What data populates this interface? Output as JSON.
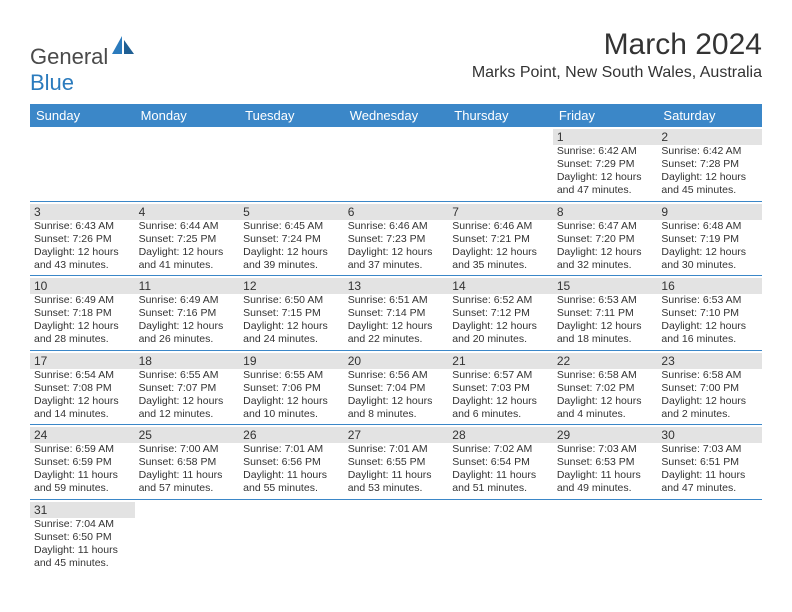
{
  "brand": {
    "part1": "General",
    "part2": "Blue"
  },
  "title": "March 2024",
  "location": "Marks Point, New South Wales, Australia",
  "colors": {
    "header_bg": "#3b87c8",
    "header_text": "#ffffff",
    "daynum_bg": "#e3e3e3",
    "rule": "#3b87c8",
    "text": "#333333",
    "logo_blue": "#2b7bbd"
  },
  "dayNames": [
    "Sunday",
    "Monday",
    "Tuesday",
    "Wednesday",
    "Thursday",
    "Friday",
    "Saturday"
  ],
  "weeks": [
    [
      null,
      null,
      null,
      null,
      null,
      {
        "n": "1",
        "sr": "6:42 AM",
        "ss": "7:29 PM",
        "dl": "12 hours and 47 minutes."
      },
      {
        "n": "2",
        "sr": "6:42 AM",
        "ss": "7:28 PM",
        "dl": "12 hours and 45 minutes."
      }
    ],
    [
      {
        "n": "3",
        "sr": "6:43 AM",
        "ss": "7:26 PM",
        "dl": "12 hours and 43 minutes."
      },
      {
        "n": "4",
        "sr": "6:44 AM",
        "ss": "7:25 PM",
        "dl": "12 hours and 41 minutes."
      },
      {
        "n": "5",
        "sr": "6:45 AM",
        "ss": "7:24 PM",
        "dl": "12 hours and 39 minutes."
      },
      {
        "n": "6",
        "sr": "6:46 AM",
        "ss": "7:23 PM",
        "dl": "12 hours and 37 minutes."
      },
      {
        "n": "7",
        "sr": "6:46 AM",
        "ss": "7:21 PM",
        "dl": "12 hours and 35 minutes."
      },
      {
        "n": "8",
        "sr": "6:47 AM",
        "ss": "7:20 PM",
        "dl": "12 hours and 32 minutes."
      },
      {
        "n": "9",
        "sr": "6:48 AM",
        "ss": "7:19 PM",
        "dl": "12 hours and 30 minutes."
      }
    ],
    [
      {
        "n": "10",
        "sr": "6:49 AM",
        "ss": "7:18 PM",
        "dl": "12 hours and 28 minutes."
      },
      {
        "n": "11",
        "sr": "6:49 AM",
        "ss": "7:16 PM",
        "dl": "12 hours and 26 minutes."
      },
      {
        "n": "12",
        "sr": "6:50 AM",
        "ss": "7:15 PM",
        "dl": "12 hours and 24 minutes."
      },
      {
        "n": "13",
        "sr": "6:51 AM",
        "ss": "7:14 PM",
        "dl": "12 hours and 22 minutes."
      },
      {
        "n": "14",
        "sr": "6:52 AM",
        "ss": "7:12 PM",
        "dl": "12 hours and 20 minutes."
      },
      {
        "n": "15",
        "sr": "6:53 AM",
        "ss": "7:11 PM",
        "dl": "12 hours and 18 minutes."
      },
      {
        "n": "16",
        "sr": "6:53 AM",
        "ss": "7:10 PM",
        "dl": "12 hours and 16 minutes."
      }
    ],
    [
      {
        "n": "17",
        "sr": "6:54 AM",
        "ss": "7:08 PM",
        "dl": "12 hours and 14 minutes."
      },
      {
        "n": "18",
        "sr": "6:55 AM",
        "ss": "7:07 PM",
        "dl": "12 hours and 12 minutes."
      },
      {
        "n": "19",
        "sr": "6:55 AM",
        "ss": "7:06 PM",
        "dl": "12 hours and 10 minutes."
      },
      {
        "n": "20",
        "sr": "6:56 AM",
        "ss": "7:04 PM",
        "dl": "12 hours and 8 minutes."
      },
      {
        "n": "21",
        "sr": "6:57 AM",
        "ss": "7:03 PM",
        "dl": "12 hours and 6 minutes."
      },
      {
        "n": "22",
        "sr": "6:58 AM",
        "ss": "7:02 PM",
        "dl": "12 hours and 4 minutes."
      },
      {
        "n": "23",
        "sr": "6:58 AM",
        "ss": "7:00 PM",
        "dl": "12 hours and 2 minutes."
      }
    ],
    [
      {
        "n": "24",
        "sr": "6:59 AM",
        "ss": "6:59 PM",
        "dl": "11 hours and 59 minutes."
      },
      {
        "n": "25",
        "sr": "7:00 AM",
        "ss": "6:58 PM",
        "dl": "11 hours and 57 minutes."
      },
      {
        "n": "26",
        "sr": "7:01 AM",
        "ss": "6:56 PM",
        "dl": "11 hours and 55 minutes."
      },
      {
        "n": "27",
        "sr": "7:01 AM",
        "ss": "6:55 PM",
        "dl": "11 hours and 53 minutes."
      },
      {
        "n": "28",
        "sr": "7:02 AM",
        "ss": "6:54 PM",
        "dl": "11 hours and 51 minutes."
      },
      {
        "n": "29",
        "sr": "7:03 AM",
        "ss": "6:53 PM",
        "dl": "11 hours and 49 minutes."
      },
      {
        "n": "30",
        "sr": "7:03 AM",
        "ss": "6:51 PM",
        "dl": "11 hours and 47 minutes."
      }
    ],
    [
      {
        "n": "31",
        "sr": "7:04 AM",
        "ss": "6:50 PM",
        "dl": "11 hours and 45 minutes."
      },
      null,
      null,
      null,
      null,
      null,
      null
    ]
  ],
  "labels": {
    "sunrise": "Sunrise: ",
    "sunset": "Sunset: ",
    "daylight": "Daylight: "
  }
}
